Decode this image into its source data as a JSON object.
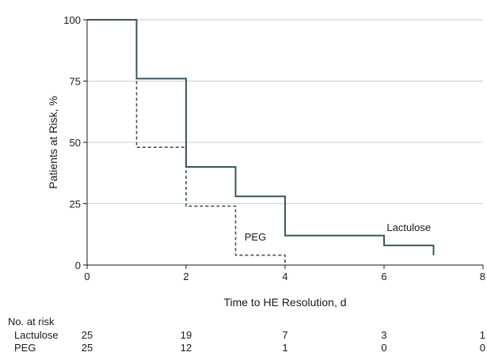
{
  "chart_data": {
    "type": "line",
    "xlabel": "Time to HE Resolution, d",
    "ylabel": "Patients at Risk, %",
    "xlim": [
      0,
      8
    ],
    "ylim": [
      0,
      100
    ],
    "xticks": [
      0,
      2,
      4,
      6,
      8
    ],
    "yticks": [
      0,
      25,
      50,
      75,
      100
    ],
    "xtick_labels": [
      "0",
      "2",
      "4",
      "6",
      "8"
    ],
    "ytick_labels": [
      "0",
      "25",
      "50",
      "75",
      "100"
    ],
    "step": true,
    "series": [
      {
        "name": "Lactulose",
        "line_style": "solid",
        "color": "#3a5560",
        "points": [
          [
            0,
            100
          ],
          [
            1,
            100
          ],
          [
            1,
            76
          ],
          [
            2,
            76
          ],
          [
            2,
            40
          ],
          [
            3,
            40
          ],
          [
            3,
            28
          ],
          [
            4,
            28
          ],
          [
            4,
            12
          ],
          [
            6,
            12
          ],
          [
            6,
            8
          ],
          [
            7,
            8
          ],
          [
            7,
            4
          ]
        ]
      },
      {
        "name": "PEG",
        "line_style": "dashed",
        "color": "#3a5560",
        "points": [
          [
            0,
            100
          ],
          [
            1,
            100
          ],
          [
            1,
            48
          ],
          [
            2,
            48
          ],
          [
            2,
            24
          ],
          [
            3,
            24
          ],
          [
            3,
            4
          ],
          [
            4,
            4
          ],
          [
            4,
            0
          ]
        ]
      }
    ],
    "curve_labels": [
      {
        "text": "Lactulose",
        "x": 6.5,
        "y": 12
      },
      {
        "text": "PEG",
        "x": 3.4,
        "y": 8
      }
    ],
    "risk_table": {
      "title": "No. at risk",
      "times": [
        0,
        2,
        4,
        6,
        8
      ],
      "rows": [
        {
          "label": "Lactulose",
          "values": [
            "25",
            "19",
            "7",
            "3",
            "1"
          ]
        },
        {
          "label": "PEG",
          "values": [
            "25",
            "12",
            "1",
            "0",
            "0"
          ]
        }
      ]
    }
  }
}
